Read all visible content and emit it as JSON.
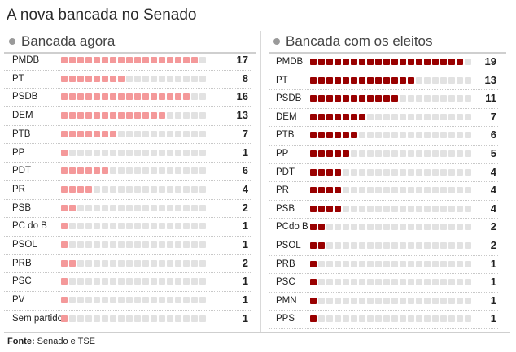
{
  "title": "A nova bancada no Senado",
  "source": {
    "label": "Fonte:",
    "text": " Senado e TSE"
  },
  "colors": {
    "now": "#f4999a",
    "elected": "#990000",
    "empty": "#e2e2e2"
  },
  "chart_data": [
    {
      "type": "bar",
      "title": "Bancada agora",
      "max_cells": 18,
      "categories": [
        "PMDB",
        "PT",
        "PSDB",
        "DEM",
        "PTB",
        "PP",
        "PDT",
        "PR",
        "PSB",
        "PC do B",
        "PSOL",
        "PRB",
        "PSC",
        "PV",
        "Sem partido"
      ],
      "values": [
        17,
        8,
        16,
        13,
        7,
        1,
        6,
        4,
        2,
        1,
        1,
        2,
        1,
        1,
        1
      ]
    },
    {
      "type": "bar",
      "title": "Bancada com os eleitos",
      "max_cells": 20,
      "categories": [
        "PMDB",
        "PT",
        "PSDB",
        "DEM",
        "PTB",
        "PP",
        "PDT",
        "PR",
        "PSB",
        "PCdo B",
        "PSOL",
        "PRB",
        "PSC",
        "PMN",
        "PPS"
      ],
      "values": [
        19,
        13,
        11,
        7,
        6,
        5,
        4,
        4,
        4,
        2,
        2,
        1,
        1,
        1,
        1
      ]
    }
  ]
}
